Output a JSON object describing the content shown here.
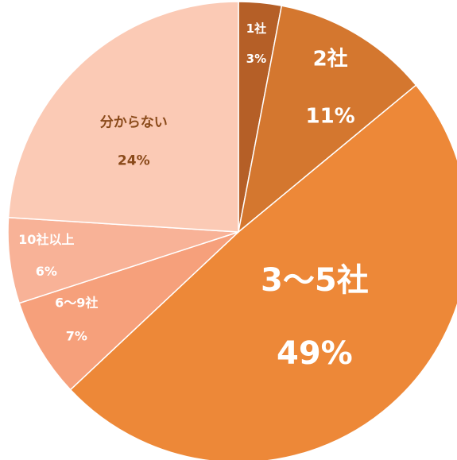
{
  "chart_data": {
    "type": "pie",
    "title": "",
    "start_angle_deg": 0,
    "direction": "clockwise",
    "legend": "none",
    "slices": [
      {
        "category": "1社",
        "value": 3,
        "value_label": "3%",
        "color": "#b55f27",
        "label_color": "#ffffff"
      },
      {
        "category": "2社",
        "value": 11,
        "value_label": "11%",
        "color": "#d4772f",
        "label_color": "#ffffff"
      },
      {
        "category": "3〜5社",
        "value": 49,
        "value_label": "49%",
        "color": "#ed8838",
        "label_color": "#ffffff"
      },
      {
        "category": "6〜9社",
        "value": 7,
        "value_label": "7%",
        "color": "#f6a07b",
        "label_color": "#ffffff"
      },
      {
        "category": "10社以上",
        "value": 6,
        "value_label": "6%",
        "color": "#f8b297",
        "label_color": "#ffffff"
      },
      {
        "category": "分からない",
        "value": 24,
        "value_label": "24%",
        "color": "#fbcab5",
        "label_color": "#8a4a1a"
      }
    ]
  }
}
